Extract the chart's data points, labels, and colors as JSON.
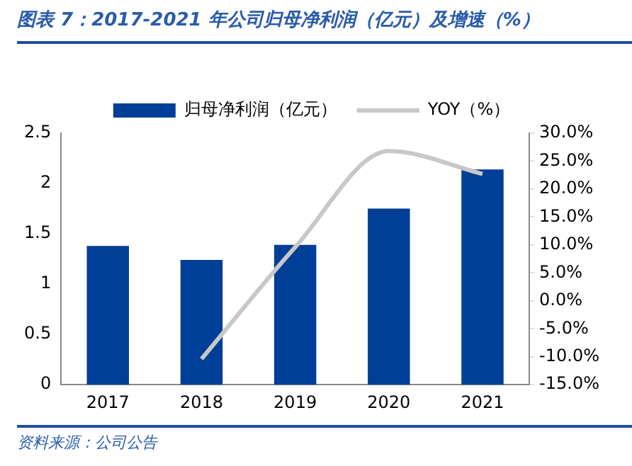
{
  "chart_data": {
    "type": "bar",
    "title": "图表 7：2017-2021 年公司归母净利润（亿元）及增速（%）",
    "categories": [
      "2017",
      "2018",
      "2019",
      "2020",
      "2021"
    ],
    "series": [
      {
        "name": "归母净利润（亿元）",
        "color": "#003f98",
        "values": [
          1.38,
          1.24,
          1.39,
          1.75,
          2.14
        ]
      },
      {
        "name": "YOY（%）",
        "type": "line",
        "axis": "y2",
        "color": "#c8c8c8",
        "values": [
          null,
          -10.4,
          9.6,
          26.8,
          22.7
        ]
      }
    ],
    "ylim": [
      0,
      2.5
    ],
    "yticks": [
      0,
      0.5,
      1,
      1.5,
      2,
      2.5
    ],
    "y2lim": [
      -15,
      30
    ],
    "y2ticks": [
      {
        "value": 30,
        "label": "30.0%"
      },
      {
        "value": 25,
        "label": "25.0%"
      },
      {
        "value": 20,
        "label": "20.0%"
      },
      {
        "value": 15,
        "label": "15.0%"
      },
      {
        "value": 10,
        "label": "10.0%"
      },
      {
        "value": 5,
        "label": "5.0%"
      },
      {
        "value": 0,
        "label": "0.0%"
      },
      {
        "value": -5,
        "label": "-5.0%"
      },
      {
        "value": -10,
        "label": "-10.0%"
      },
      {
        "value": -15,
        "label": "-15.0%"
      }
    ],
    "grid": false,
    "legend": "top",
    "marker": "none",
    "line_style": "solid",
    "annotations": [
      "资料来源：公司公告"
    ]
  }
}
